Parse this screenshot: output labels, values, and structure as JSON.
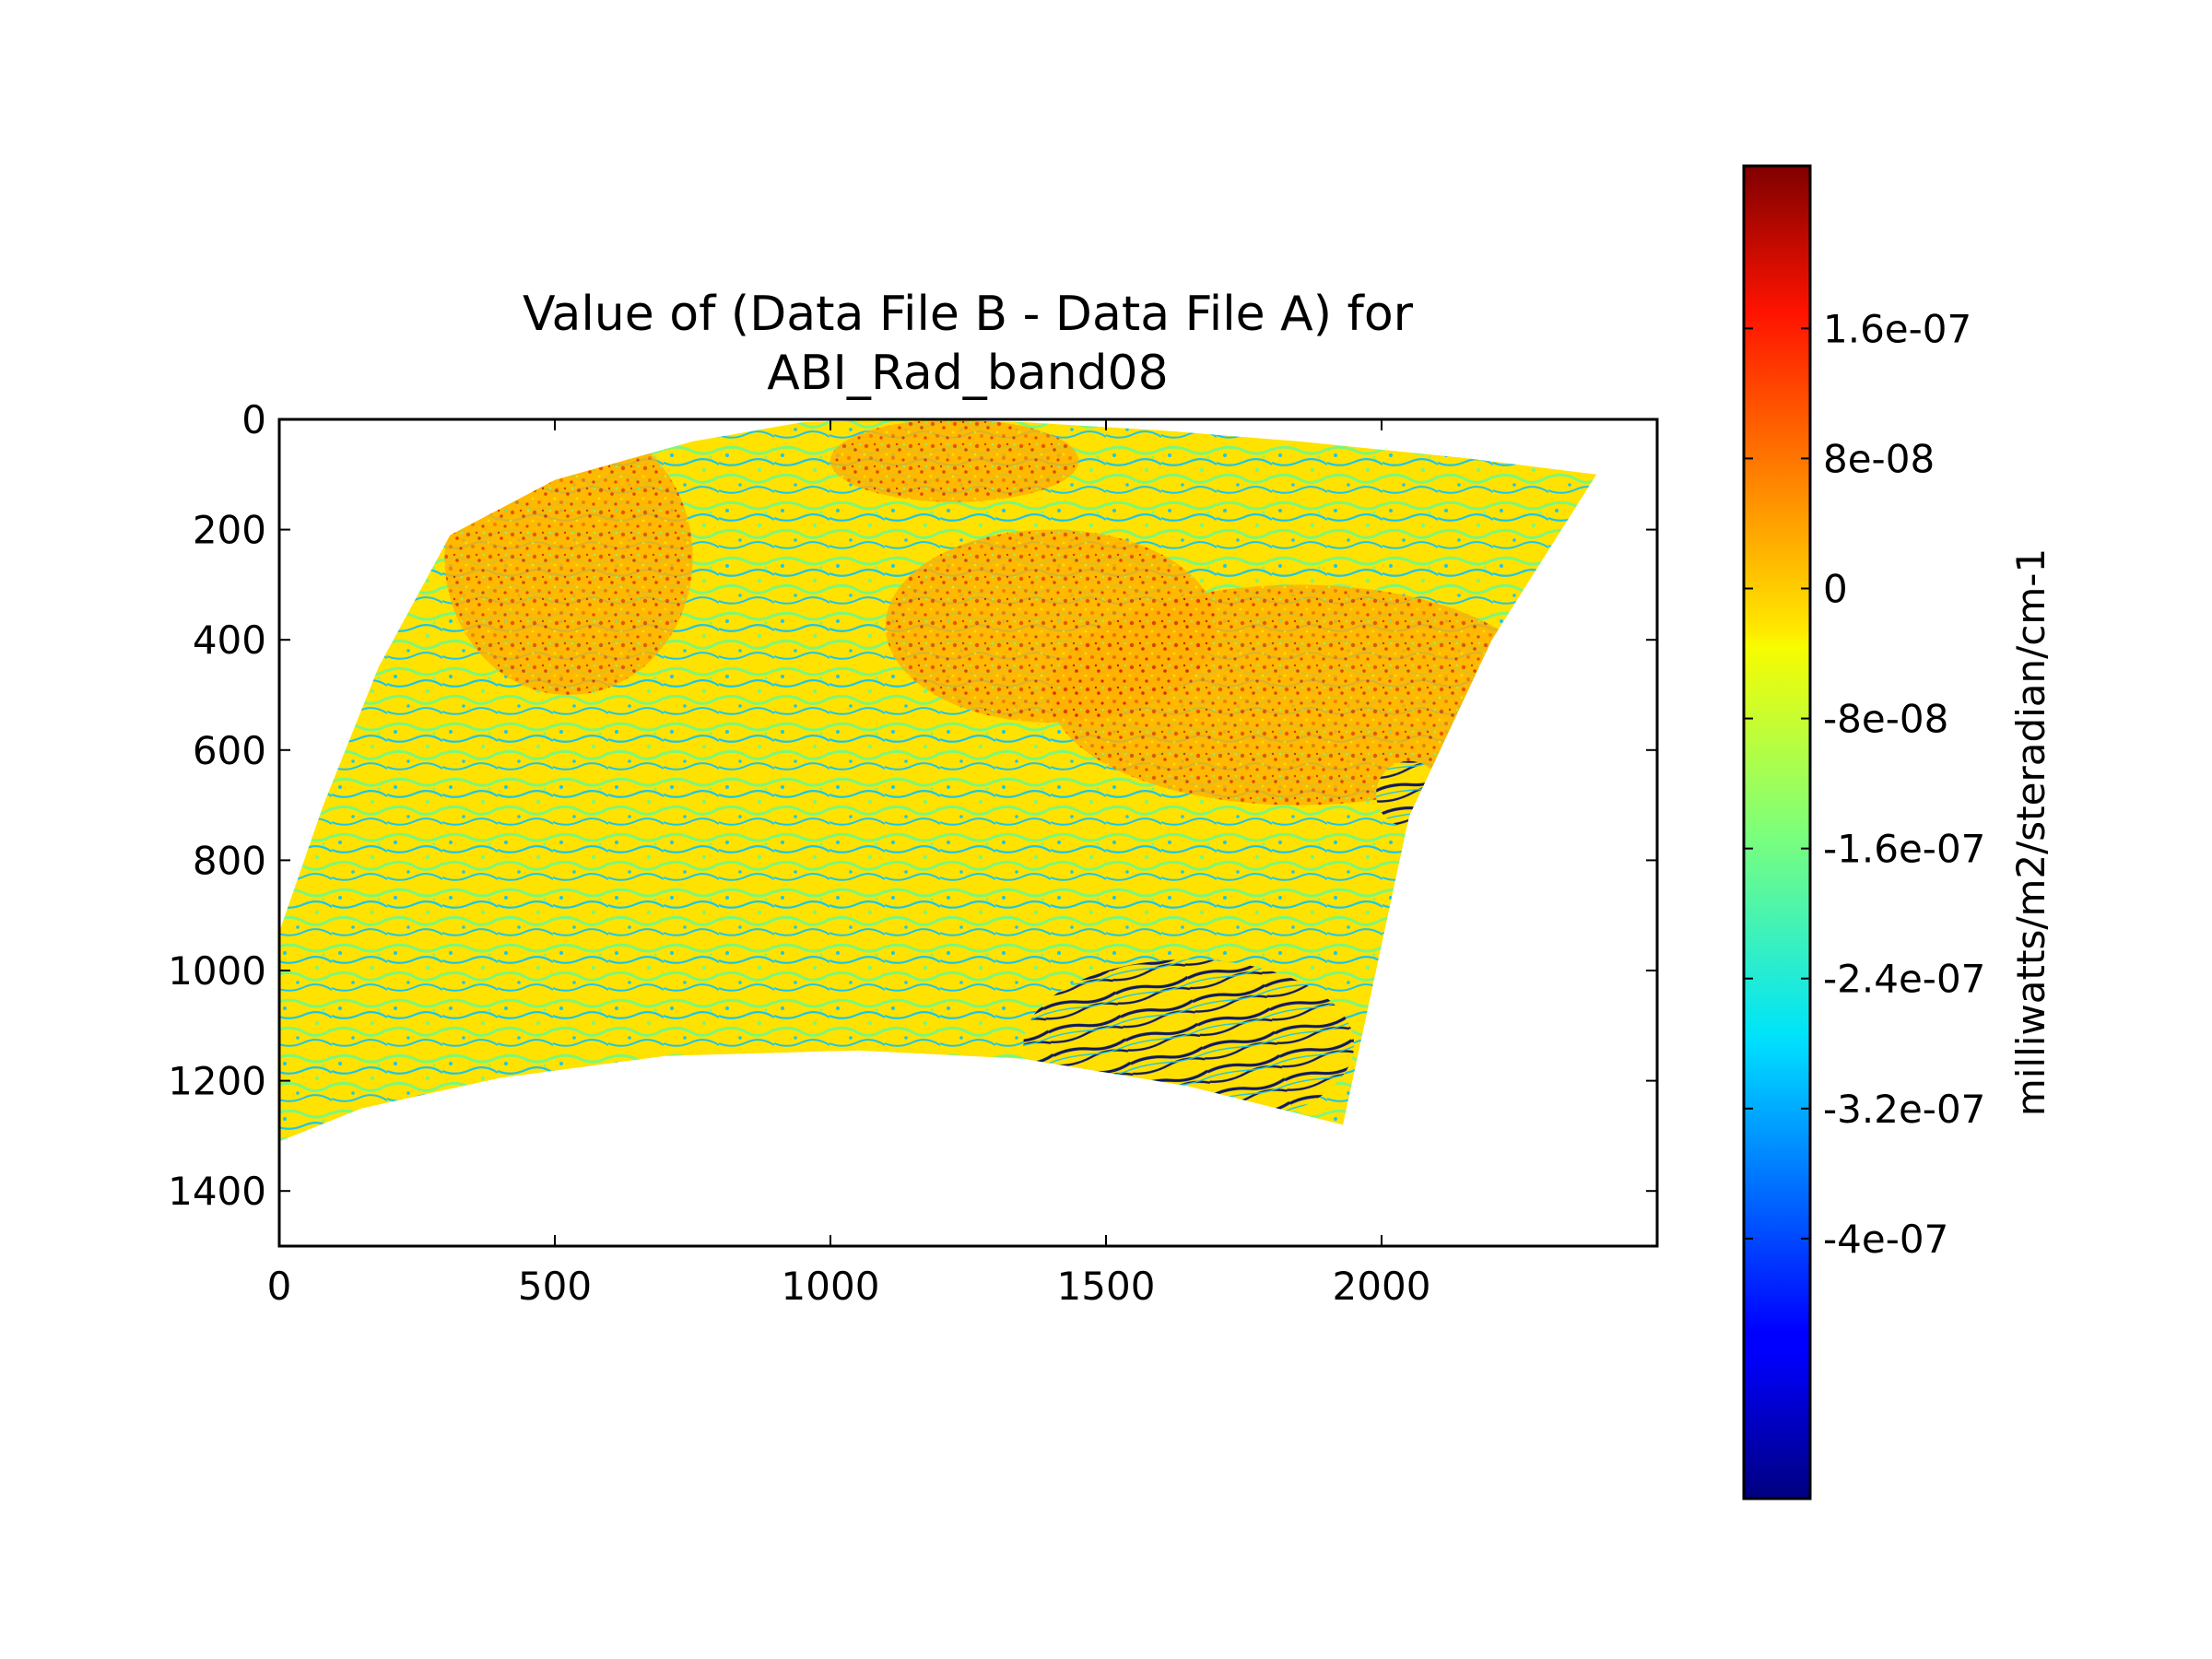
{
  "chart_data": {
    "type": "heatmap",
    "title": "Value of (Data File B - Data File A) for\nABI_Rad_band08",
    "title_lines": [
      "Value of (Data File B - Data File A) for",
      "ABI_Rad_band08"
    ],
    "xlabel": "",
    "ylabel": "",
    "xlim": [
      0,
      2500
    ],
    "ylim": [
      1500,
      0
    ],
    "y_inverted": true,
    "grid": false,
    "x_ticks": [
      0,
      500,
      1000,
      1500,
      2000
    ],
    "x_tick_labels": [
      "0",
      "500",
      "1000",
      "1500",
      "2000"
    ],
    "y_ticks": [
      0,
      200,
      400,
      600,
      800,
      1000,
      1200,
      1400
    ],
    "y_tick_labels": [
      "0",
      "200",
      "400",
      "600",
      "800",
      "1000",
      "1200",
      "1400"
    ],
    "data_region": {
      "top_edge": [
        [
          310,
          210
        ],
        [
          500,
          110
        ],
        [
          750,
          40
        ],
        [
          950,
          5
        ],
        [
          1150,
          0
        ],
        [
          1350,
          5
        ],
        [
          1600,
          20
        ],
        [
          1850,
          40
        ],
        [
          2150,
          70
        ],
        [
          2390,
          100
        ]
      ],
      "right_edge": [
        [
          2390,
          100
        ],
        [
          2200,
          400
        ],
        [
          2050,
          720
        ],
        [
          1930,
          1280
        ]
      ],
      "bottom_edge": [
        [
          1930,
          1280
        ],
        [
          1650,
          1210
        ],
        [
          1350,
          1160
        ],
        [
          1050,
          1145
        ],
        [
          700,
          1155
        ],
        [
          400,
          1195
        ],
        [
          150,
          1250
        ],
        [
          0,
          1310
        ]
      ],
      "left_edge": [
        [
          0,
          1310
        ],
        [
          0,
          930
        ],
        [
          80,
          700
        ],
        [
          180,
          450
        ],
        [
          310,
          210
        ]
      ]
    },
    "features": [
      {
        "region": "upper-left",
        "x": [
          300,
          750
        ],
        "y": [
          0,
          500
        ],
        "tendency": "positive"
      },
      {
        "region": "upper-center",
        "x": [
          1000,
          1450
        ],
        "y": [
          0,
          150
        ],
        "tendency": "positive"
      },
      {
        "region": "center-right",
        "x": [
          1100,
          1700
        ],
        "y": [
          200,
          550
        ],
        "tendency": "positive"
      },
      {
        "region": "right",
        "x": [
          1400,
          2300
        ],
        "y": [
          300,
          700
        ],
        "tendency": "positive"
      },
      {
        "region": "lower-right",
        "x": [
          1350,
          1950
        ],
        "y": [
          980,
          1290
        ],
        "tendency": "striped"
      },
      {
        "region": "small-patch",
        "x": [
          1990,
          2110
        ],
        "y": [
          620,
          740
        ],
        "tendency": "striped"
      }
    ],
    "colorbar": {
      "label": "milliwatts/m2/steradian/cm-1",
      "colormap": "jet",
      "vmin": -5.6e-07,
      "vmax": 2.6e-07,
      "ticks": [
        1.6e-07,
        8e-08,
        0,
        -8e-08,
        -1.6e-07,
        -2.4e-07,
        -3.2e-07,
        -4e-07
      ],
      "tick_labels": [
        "1.6e-07",
        "8e-08",
        "0",
        "-8e-08",
        "-1.6e-07",
        "-2.4e-07",
        "-3.2e-07",
        "-4e-07"
      ]
    },
    "colors": {
      "dominant": [
        "#ffe000",
        "#7ffb7b",
        "#16c8f0",
        "#ff8c00",
        "#e02000"
      ],
      "background": "#ffffff"
    }
  }
}
